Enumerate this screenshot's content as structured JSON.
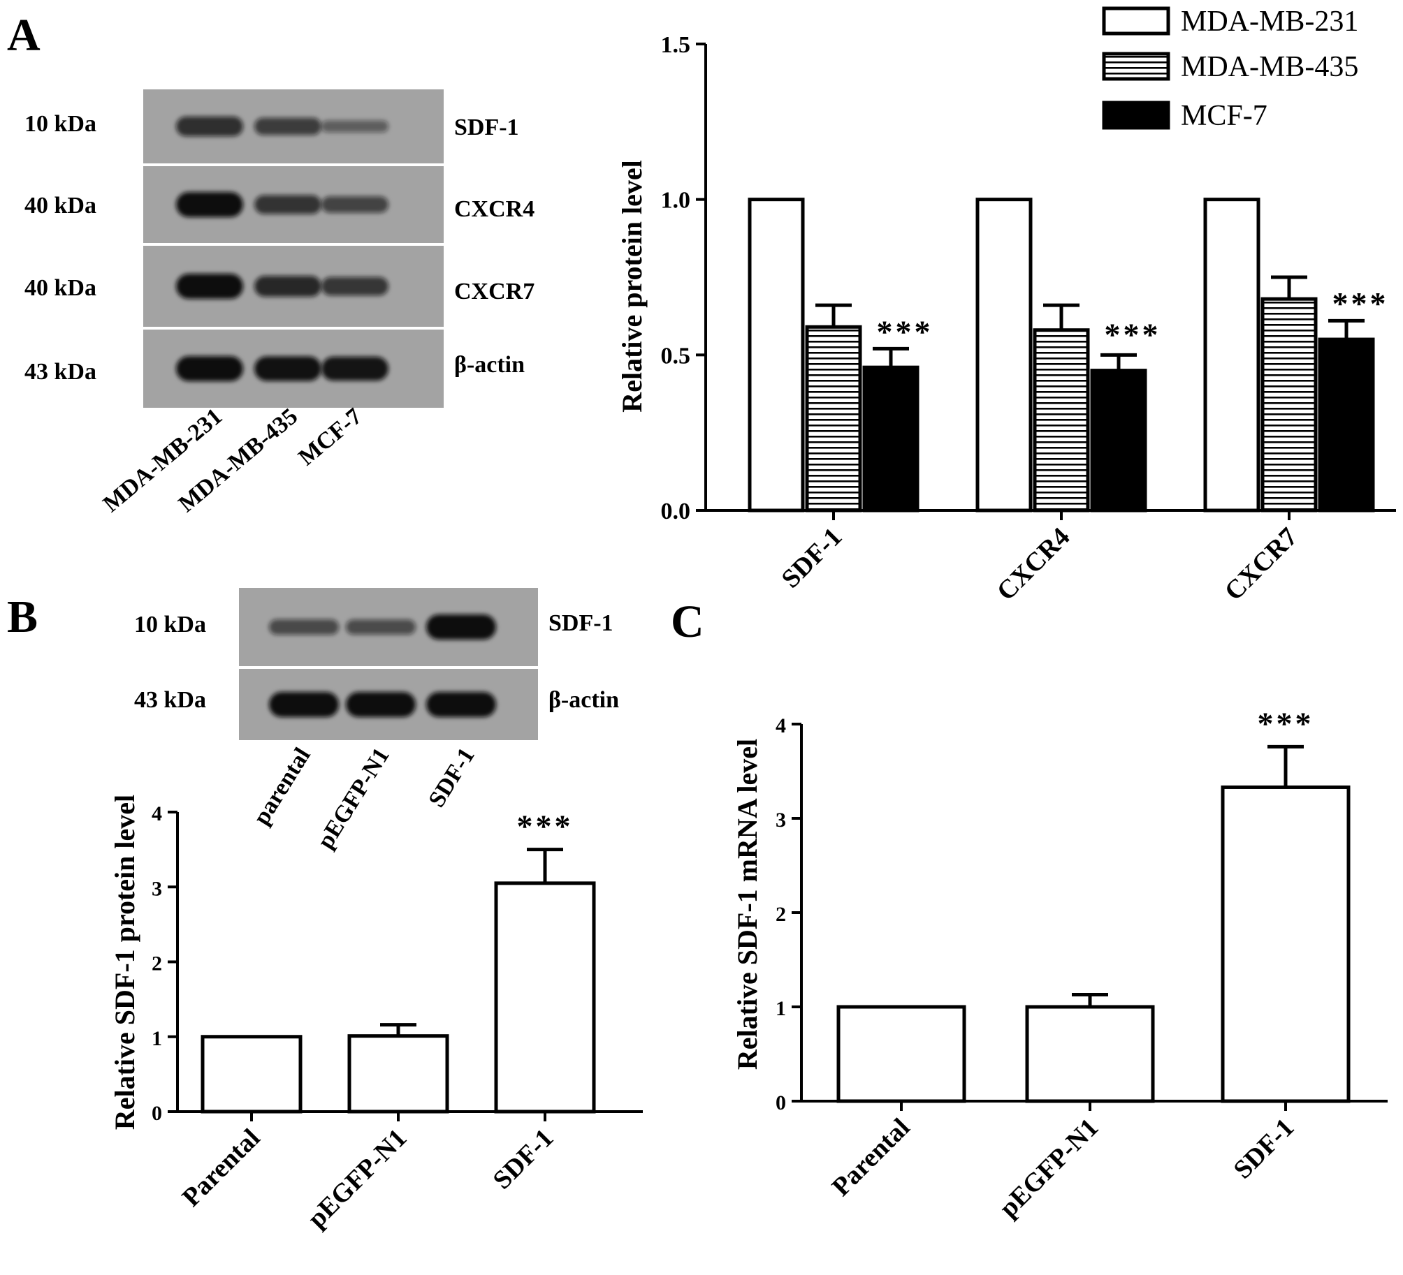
{
  "panels": {
    "A": "A",
    "B": "B",
    "C": "C"
  },
  "blot_A": {
    "marker_labels": [
      "10 kDa",
      "40 kDa",
      "40 kDa",
      "43 kDa"
    ],
    "protein_labels": [
      "SDF-1",
      "CXCR4",
      "CXCR7",
      "β-actin"
    ],
    "lane_labels": [
      "MDA-MB-231",
      "MDA-MB-435",
      "MCF-7"
    ],
    "band_intensity": [
      [
        0.72,
        0.6,
        0.32
      ],
      [
        1.0,
        0.68,
        0.55
      ],
      [
        1.0,
        0.78,
        0.66
      ],
      [
        1.0,
        0.97,
        0.94
      ]
    ]
  },
  "blot_B": {
    "marker_labels": [
      "10 kDa",
      "43 kDa"
    ],
    "protein_labels": [
      "SDF-1",
      "β-actin"
    ],
    "lane_labels": [
      "parental",
      "pEGFP-N1",
      "SDF-1"
    ],
    "band_intensity": [
      [
        0.5,
        0.48,
        1.0
      ],
      [
        1.0,
        1.0,
        1.0
      ]
    ]
  },
  "chart_data": [
    {
      "id": "A",
      "type": "bar",
      "ylabel": "Relative protein  level",
      "ylim": [
        0,
        1.5
      ],
      "yticks": [
        "0.0",
        "0.5",
        "1.0",
        "1.5"
      ],
      "categories": [
        "SDF-1",
        "CXCR4",
        "CXCR7"
      ],
      "legend_position": "top-right",
      "series": [
        {
          "name": "MDA-MB-231",
          "fill": "white",
          "values": [
            1.0,
            1.0,
            1.0
          ],
          "errors": [
            0,
            0,
            0
          ]
        },
        {
          "name": "MDA-MB-435",
          "fill": "stripes",
          "values": [
            0.59,
            0.58,
            0.68
          ],
          "errors": [
            0.07,
            0.08,
            0.07
          ]
        },
        {
          "name": "MCF-7",
          "fill": "black",
          "values": [
            0.46,
            0.45,
            0.55
          ],
          "errors": [
            0.06,
            0.05,
            0.06
          ]
        }
      ],
      "annotations": [
        "***",
        "***",
        "***"
      ]
    },
    {
      "id": "B",
      "type": "bar",
      "ylabel": "Relative SDF-1 protein  level",
      "ylim": [
        0,
        4
      ],
      "yticks": [
        "0",
        "1",
        "2",
        "3",
        "4"
      ],
      "categories": [
        "Parental",
        "pEGFP-N1",
        "SDF-1"
      ],
      "values": [
        1.0,
        1.01,
        3.05
      ],
      "errors": [
        0,
        0.15,
        0.45
      ],
      "annotations": [
        "",
        "",
        "***"
      ]
    },
    {
      "id": "C",
      "type": "bar",
      "ylabel": "Relative SDF-1 mRNA  level",
      "ylim": [
        0,
        4
      ],
      "yticks": [
        "0",
        "1",
        "2",
        "3",
        "4"
      ],
      "categories": [
        "Parental",
        "pEGFP-N1",
        "SDF-1"
      ],
      "values": [
        1.0,
        1.0,
        3.33
      ],
      "errors": [
        0,
        0.13,
        0.43
      ],
      "annotations": [
        "",
        "",
        "***"
      ]
    }
  ]
}
